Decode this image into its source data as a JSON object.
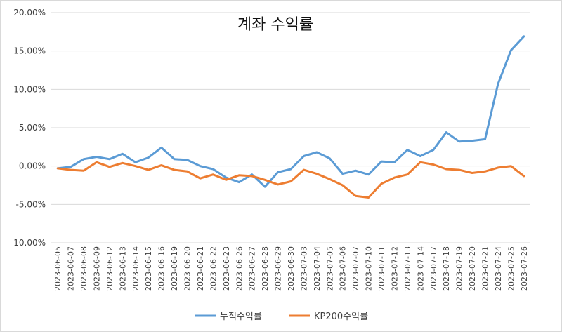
{
  "chart_data": {
    "type": "line",
    "title": "계좌 수익률",
    "xlabel": "",
    "ylabel": "",
    "ylim": [
      -0.1,
      0.2
    ],
    "yticks": [
      "-10.00%",
      "-5.00%",
      "0.00%",
      "5.00%",
      "10.00%",
      "15.00%",
      "20.00%"
    ],
    "grid": true,
    "legend_position": "bottom",
    "categories": [
      "2023-06-05",
      "2023-06-07",
      "2023-06-08",
      "2023-06-09",
      "2023-06-12",
      "2023-06-13",
      "2023-06-14",
      "2023-06-15",
      "2023-06-16",
      "2023-06-19",
      "2023-06-20",
      "2023-06-21",
      "2023-06-22",
      "2023-06-23",
      "2023-06-26",
      "2023-06-27",
      "2023-06-28",
      "2023-06-29",
      "2023-06-30",
      "2023-07-03",
      "2023-07-04",
      "2023-07-05",
      "2023-07-06",
      "2023-07-07",
      "2023-07-10",
      "2023-07-11",
      "2023-07-12",
      "2023-07-13",
      "2023-07-14",
      "2023-07-17",
      "2023-07-18",
      "2023-07-19",
      "2023-07-20",
      "2023-07-21",
      "2023-07-24",
      "2023-07-25",
      "2023-07-26"
    ],
    "series": [
      {
        "name": "누적수익률",
        "color": "#5b9bd5",
        "values": [
          -0.003,
          -0.001,
          0.009,
          0.012,
          0.009,
          0.016,
          0.005,
          0.011,
          0.024,
          0.009,
          0.008,
          0.0,
          -0.004,
          -0.015,
          -0.021,
          -0.011,
          -0.027,
          -0.008,
          -0.004,
          0.013,
          0.018,
          0.01,
          -0.01,
          -0.006,
          -0.011,
          0.006,
          0.005,
          0.021,
          0.013,
          0.021,
          0.044,
          0.032,
          0.033,
          0.035,
          0.107,
          0.151,
          0.169
        ]
      },
      {
        "name": "KP200수익률",
        "color": "#ed7d31",
        "values": [
          -0.003,
          -0.005,
          -0.006,
          0.005,
          -0.001,
          0.004,
          0.0,
          -0.005,
          0.001,
          -0.005,
          -0.007,
          -0.016,
          -0.011,
          -0.018,
          -0.012,
          -0.013,
          -0.018,
          -0.024,
          -0.02,
          -0.005,
          -0.01,
          -0.017,
          -0.025,
          -0.039,
          -0.041,
          -0.023,
          -0.015,
          -0.011,
          0.005,
          0.002,
          -0.004,
          -0.005,
          -0.009,
          -0.007,
          -0.002,
          0.0,
          -0.013
        ]
      }
    ]
  }
}
